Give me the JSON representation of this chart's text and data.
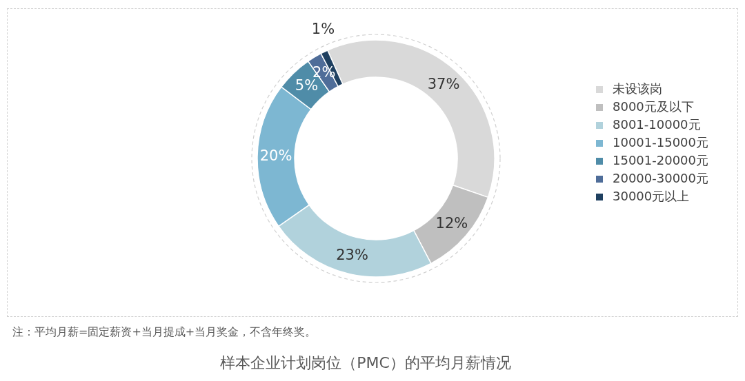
{
  "chart_data": {
    "type": "donut",
    "title": "样本企业计划岗位（PMC）的平均月薪情况",
    "annotations": [
      "注：平均月薪=固定薪资+当月提成+当月奖金，不含年终奖。"
    ],
    "categories": [
      "未设该岗",
      "8000元及以下",
      "8001-10000元",
      "10001-15000元",
      "15001-20000元",
      "20000-30000元",
      "30000元以上"
    ],
    "values": [
      37,
      12,
      23,
      20,
      5,
      2,
      1
    ],
    "colors": [
      "#d9d9d9",
      "#bfbfbf",
      "#b1d2dc",
      "#7db7d2",
      "#4f8ca8",
      "#4f6d99",
      "#1f4060"
    ],
    "value_labels": [
      "37%",
      "12%",
      "23%",
      "20%",
      "5%",
      "2%",
      "1%"
    ],
    "legend": "right"
  }
}
